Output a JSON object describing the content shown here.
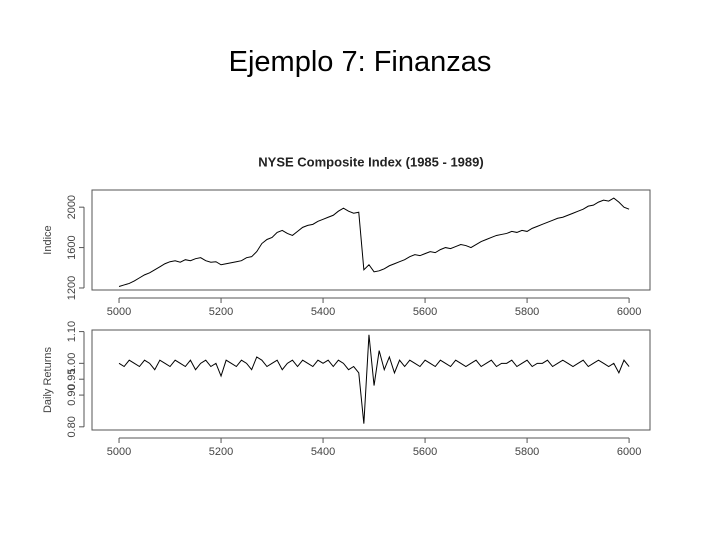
{
  "slide_title": "Ejemplo 7: Finanzas",
  "chart_data": [
    {
      "type": "line",
      "title": "NYSE Composite Index (1985 - 1989)",
      "y_label": "Indice",
      "xlim": [
        4947,
        6041
      ],
      "xticks": [
        5000,
        5200,
        5400,
        5600,
        5800,
        6000
      ],
      "ylim": [
        1180,
        2170
      ],
      "yticks": [
        1200,
        1600,
        2000
      ],
      "x": [
        5000,
        5010,
        5020,
        5030,
        5040,
        5050,
        5060,
        5070,
        5080,
        5090,
        5100,
        5110,
        5120,
        5130,
        5140,
        5150,
        5160,
        5170,
        5180,
        5190,
        5200,
        5210,
        5220,
        5230,
        5240,
        5250,
        5260,
        5270,
        5280,
        5290,
        5300,
        5310,
        5320,
        5330,
        5340,
        5350,
        5360,
        5370,
        5380,
        5390,
        5400,
        5410,
        5420,
        5430,
        5440,
        5450,
        5460,
        5470,
        5480,
        5490,
        5500,
        5510,
        5520,
        5530,
        5540,
        5550,
        5560,
        5570,
        5580,
        5590,
        5600,
        5610,
        5620,
        5630,
        5640,
        5650,
        5660,
        5670,
        5680,
        5690,
        5700,
        5710,
        5720,
        5730,
        5740,
        5750,
        5760,
        5770,
        5780,
        5790,
        5800,
        5810,
        5820,
        5830,
        5840,
        5850,
        5860,
        5870,
        5880,
        5890,
        5900,
        5910,
        5920,
        5930,
        5940,
        5950,
        5960,
        5970,
        5980,
        5990,
        6000
      ],
      "series": [
        {
          "color": "#000000",
          "values": [
            1215,
            1230,
            1245,
            1270,
            1300,
            1330,
            1350,
            1380,
            1410,
            1440,
            1460,
            1470,
            1455,
            1480,
            1470,
            1490,
            1500,
            1470,
            1455,
            1460,
            1430,
            1440,
            1450,
            1460,
            1470,
            1500,
            1510,
            1560,
            1640,
            1680,
            1700,
            1750,
            1770,
            1740,
            1720,
            1760,
            1800,
            1820,
            1830,
            1860,
            1880,
            1900,
            1920,
            1960,
            1990,
            1960,
            1940,
            1950,
            1380,
            1430,
            1360,
            1370,
            1390,
            1420,
            1440,
            1460,
            1480,
            1510,
            1530,
            1520,
            1540,
            1560,
            1550,
            1580,
            1600,
            1590,
            1610,
            1630,
            1620,
            1600,
            1630,
            1660,
            1680,
            1700,
            1720,
            1730,
            1740,
            1760,
            1750,
            1770,
            1760,
            1790,
            1810,
            1830,
            1850,
            1870,
            1890,
            1900,
            1920,
            1940,
            1960,
            1980,
            2010,
            2020,
            2050,
            2070,
            2060,
            2090,
            2050,
            2000,
            1980
          ]
        }
      ]
    },
    {
      "type": "line",
      "y_label": "Daily Returns",
      "xlim": [
        4947,
        6041
      ],
      "xticks": [
        5000,
        5200,
        5400,
        5600,
        5800,
        6000
      ],
      "ylim": [
        0.79,
        1.105
      ],
      "yticks": [
        {
          "value": 0.8,
          "label": "0.80"
        },
        {
          "value": 0.9,
          "label": "0.90"
        },
        0.95,
        {
          "value": 1.0,
          "label": "1.00"
        },
        {
          "value": 1.1,
          "label": "1.10"
        }
      ],
      "x": [
        5000,
        5010,
        5020,
        5030,
        5040,
        5050,
        5060,
        5070,
        5080,
        5090,
        5100,
        5110,
        5120,
        5130,
        5140,
        5150,
        5160,
        5170,
        5180,
        5190,
        5200,
        5210,
        5220,
        5230,
        5240,
        5250,
        5260,
        5270,
        5280,
        5290,
        5300,
        5310,
        5320,
        5330,
        5340,
        5350,
        5360,
        5370,
        5380,
        5390,
        5400,
        5410,
        5420,
        5430,
        5440,
        5450,
        5460,
        5470,
        5480,
        5490,
        5500,
        5510,
        5520,
        5530,
        5540,
        5550,
        5560,
        5570,
        5580,
        5590,
        5600,
        5610,
        5620,
        5630,
        5640,
        5650,
        5660,
        5670,
        5680,
        5690,
        5700,
        5710,
        5720,
        5730,
        5740,
        5750,
        5760,
        5770,
        5780,
        5790,
        5800,
        5810,
        5820,
        5830,
        5840,
        5850,
        5860,
        5870,
        5880,
        5890,
        5900,
        5910,
        5920,
        5930,
        5940,
        5950,
        5960,
        5970,
        5980,
        5990,
        6000
      ],
      "series": [
        {
          "color": "#000000",
          "values": [
            1.0,
            0.99,
            1.01,
            1.0,
            0.99,
            1.01,
            1.0,
            0.98,
            1.01,
            1.0,
            0.99,
            1.01,
            1.0,
            0.99,
            1.01,
            0.98,
            1.0,
            1.01,
            0.99,
            1.0,
            0.96,
            1.01,
            1.0,
            0.99,
            1.01,
            1.0,
            0.98,
            1.02,
            1.01,
            0.99,
            1.0,
            1.01,
            0.98,
            1.0,
            1.01,
            0.99,
            1.01,
            1.0,
            0.99,
            1.01,
            1.0,
            1.01,
            0.99,
            1.01,
            1.0,
            0.98,
            0.99,
            0.97,
            0.81,
            1.09,
            0.93,
            1.04,
            0.98,
            1.02,
            0.97,
            1.01,
            0.99,
            1.01,
            1.0,
            0.99,
            1.01,
            1.0,
            0.99,
            1.01,
            1.0,
            0.99,
            1.01,
            1.0,
            0.99,
            1.0,
            1.01,
            0.99,
            1.0,
            1.01,
            0.99,
            1.0,
            1.0,
            1.01,
            0.99,
            1.0,
            1.01,
            0.99,
            1.0,
            1.0,
            1.01,
            0.99,
            1.0,
            1.01,
            1.0,
            0.99,
            1.0,
            1.01,
            0.99,
            1.0,
            1.01,
            1.0,
            0.99,
            1.0,
            0.97,
            1.01,
            0.99
          ]
        }
      ]
    }
  ]
}
